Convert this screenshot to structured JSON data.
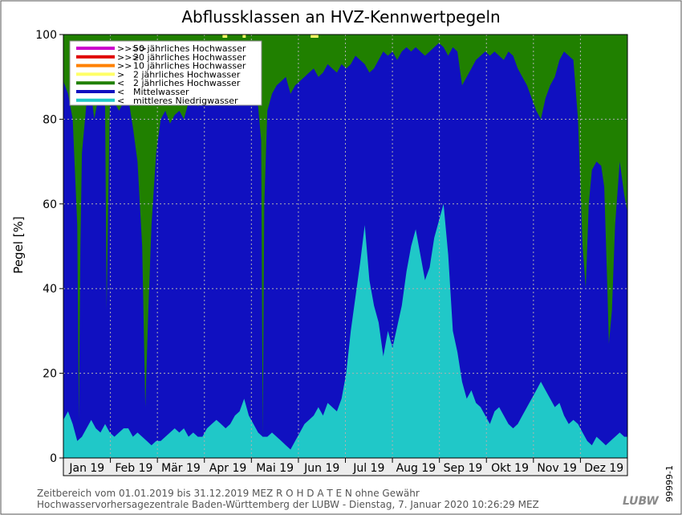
{
  "chart_data": {
    "type": "area",
    "title": "Abflussklassen an HVZ-Kennwertpegeln",
    "ylabel": "Pegel [%]",
    "xlabel": "",
    "ylim": [
      0,
      100
    ],
    "yticks": [
      0,
      20,
      40,
      60,
      80,
      100
    ],
    "grid": true,
    "legend_position": "top-left",
    "months": [
      "Jan 19",
      "Feb 19",
      "Mär 19",
      "Apr 19",
      "Mai 19",
      "Jun 19",
      "Jul 19",
      "Aug 19",
      "Sep 19",
      "Okt 19",
      "Nov 19",
      "Dez 19"
    ],
    "legend": [
      {
        "label": "50 jährliches Hochwasser",
        "marker": ">>>>",
        "color": "#cc00cc"
      },
      {
        "label": "20 jährliches Hochwasser",
        "marker": ">>>",
        "color": "#e00000"
      },
      {
        "label": "10 jährliches Hochwasser",
        "marker": ">>",
        "color": "#ff8000"
      },
      {
        "label": "2 jährliches Hochwasser",
        "marker": ">",
        "color": "#ffff66"
      },
      {
        "label": "2 jährliches Hochwasser",
        "marker": "<",
        "color": "#208000"
      },
      {
        "label": "Mittelwasser",
        "marker": "<",
        "color": "#1010c0"
      },
      {
        "label": "mittleres Niedrigwasser",
        "marker": "<",
        "color": "#20c8c8"
      }
    ],
    "series": [
      {
        "name": "mittleres Niedrigwasser",
        "color": "#20c8c8",
        "points": [
          [
            0,
            9
          ],
          [
            3,
            11
          ],
          [
            6,
            8
          ],
          [
            9,
            4
          ],
          [
            12,
            5
          ],
          [
            15,
            7
          ],
          [
            18,
            9
          ],
          [
            21,
            7
          ],
          [
            24,
            6
          ],
          [
            27,
            8
          ],
          [
            30,
            6
          ],
          [
            33,
            5
          ],
          [
            36,
            6
          ],
          [
            39,
            7
          ],
          [
            42,
            7
          ],
          [
            45,
            5
          ],
          [
            48,
            6
          ],
          [
            51,
            5
          ],
          [
            54,
            4
          ],
          [
            57,
            3
          ],
          [
            60,
            4
          ],
          [
            63,
            4
          ],
          [
            66,
            5
          ],
          [
            69,
            6
          ],
          [
            72,
            7
          ],
          [
            75,
            6
          ],
          [
            78,
            7
          ],
          [
            81,
            5
          ],
          [
            84,
            6
          ],
          [
            87,
            5
          ],
          [
            90,
            5
          ],
          [
            93,
            7
          ],
          [
            96,
            8
          ],
          [
            99,
            9
          ],
          [
            102,
            8
          ],
          [
            105,
            7
          ],
          [
            108,
            8
          ],
          [
            111,
            10
          ],
          [
            114,
            11
          ],
          [
            117,
            14
          ],
          [
            120,
            10
          ],
          [
            123,
            8
          ],
          [
            126,
            6
          ],
          [
            129,
            5
          ],
          [
            132,
            5
          ],
          [
            135,
            6
          ],
          [
            138,
            5
          ],
          [
            141,
            4
          ],
          [
            144,
            3
          ],
          [
            147,
            2
          ],
          [
            150,
            4
          ],
          [
            153,
            6
          ],
          [
            156,
            8
          ],
          [
            159,
            9
          ],
          [
            162,
            10
          ],
          [
            165,
            12
          ],
          [
            168,
            10
          ],
          [
            171,
            13
          ],
          [
            174,
            12
          ],
          [
            177,
            11
          ],
          [
            180,
            14
          ],
          [
            183,
            20
          ],
          [
            186,
            30
          ],
          [
            189,
            38
          ],
          [
            192,
            46
          ],
          [
            195,
            55
          ],
          [
            198,
            42
          ],
          [
            201,
            36
          ],
          [
            204,
            32
          ],
          [
            207,
            24
          ],
          [
            210,
            30
          ],
          [
            213,
            26
          ],
          [
            216,
            31
          ],
          [
            219,
            36
          ],
          [
            222,
            44
          ],
          [
            225,
            50
          ],
          [
            228,
            54
          ],
          [
            231,
            48
          ],
          [
            234,
            42
          ],
          [
            237,
            45
          ],
          [
            240,
            52
          ],
          [
            243,
            56
          ],
          [
            246,
            60
          ],
          [
            249,
            48
          ],
          [
            252,
            30
          ],
          [
            255,
            25
          ],
          [
            258,
            18
          ],
          [
            261,
            14
          ],
          [
            264,
            16
          ],
          [
            267,
            13
          ],
          [
            270,
            12
          ],
          [
            273,
            10
          ],
          [
            276,
            8
          ],
          [
            279,
            11
          ],
          [
            282,
            12
          ],
          [
            285,
            10
          ],
          [
            288,
            8
          ],
          [
            291,
            7
          ],
          [
            294,
            8
          ],
          [
            297,
            10
          ],
          [
            300,
            12
          ],
          [
            303,
            14
          ],
          [
            306,
            16
          ],
          [
            309,
            18
          ],
          [
            312,
            16
          ],
          [
            315,
            14
          ],
          [
            318,
            12
          ],
          [
            321,
            13
          ],
          [
            324,
            10
          ],
          [
            327,
            8
          ],
          [
            330,
            9
          ],
          [
            333,
            8
          ],
          [
            336,
            6
          ],
          [
            339,
            4
          ],
          [
            342,
            3
          ],
          [
            345,
            5
          ],
          [
            348,
            4
          ],
          [
            351,
            3
          ],
          [
            354,
            4
          ],
          [
            357,
            5
          ],
          [
            360,
            6
          ],
          [
            363,
            5
          ],
          [
            365,
            5
          ]
        ]
      },
      {
        "name": "Mittelwasser",
        "color": "#1010c0",
        "points": [
          [
            0,
            89
          ],
          [
            3,
            86
          ],
          [
            6,
            80
          ],
          [
            9,
            55
          ],
          [
            10,
            9
          ],
          [
            11,
            50
          ],
          [
            12,
            72
          ],
          [
            15,
            84
          ],
          [
            18,
            86
          ],
          [
            20,
            80
          ],
          [
            22,
            84
          ],
          [
            24,
            85
          ],
          [
            27,
            83
          ],
          [
            28,
            35
          ],
          [
            29,
            60
          ],
          [
            30,
            83
          ],
          [
            33,
            84
          ],
          [
            36,
            82
          ],
          [
            39,
            84
          ],
          [
            42,
            85
          ],
          [
            45,
            78
          ],
          [
            48,
            70
          ],
          [
            51,
            50
          ],
          [
            53,
            12
          ],
          [
            55,
            35
          ],
          [
            57,
            55
          ],
          [
            60,
            72
          ],
          [
            63,
            80
          ],
          [
            66,
            82
          ],
          [
            69,
            79
          ],
          [
            72,
            81
          ],
          [
            75,
            82
          ],
          [
            78,
            80
          ],
          [
            81,
            84
          ],
          [
            84,
            85
          ],
          [
            87,
            83
          ],
          [
            90,
            85
          ],
          [
            93,
            86
          ],
          [
            96,
            85
          ],
          [
            99,
            86
          ],
          [
            102,
            88
          ],
          [
            105,
            90
          ],
          [
            108,
            92
          ],
          [
            111,
            93
          ],
          [
            114,
            94
          ],
          [
            117,
            95
          ],
          [
            119,
            96
          ],
          [
            120,
            90
          ],
          [
            123,
            87
          ],
          [
            126,
            83
          ],
          [
            128,
            75
          ],
          [
            129,
            5
          ],
          [
            130,
            60
          ],
          [
            132,
            82
          ],
          [
            135,
            86
          ],
          [
            138,
            88
          ],
          [
            141,
            89
          ],
          [
            144,
            90
          ],
          [
            147,
            86
          ],
          [
            150,
            88
          ],
          [
            153,
            89
          ],
          [
            156,
            90
          ],
          [
            159,
            91
          ],
          [
            162,
            92
          ],
          [
            165,
            90
          ],
          [
            168,
            91
          ],
          [
            171,
            93
          ],
          [
            174,
            92
          ],
          [
            177,
            91
          ],
          [
            180,
            93
          ],
          [
            183,
            92
          ],
          [
            186,
            93
          ],
          [
            189,
            95
          ],
          [
            192,
            94
          ],
          [
            195,
            93
          ],
          [
            198,
            91
          ],
          [
            201,
            92
          ],
          [
            204,
            94
          ],
          [
            207,
            96
          ],
          [
            210,
            95
          ],
          [
            213,
            96
          ],
          [
            216,
            94
          ],
          [
            219,
            96
          ],
          [
            222,
            97
          ],
          [
            225,
            96
          ],
          [
            228,
            97
          ],
          [
            231,
            96
          ],
          [
            234,
            95
          ],
          [
            237,
            96
          ],
          [
            240,
            97
          ],
          [
            243,
            98
          ],
          [
            246,
            97
          ],
          [
            249,
            95
          ],
          [
            252,
            97
          ],
          [
            255,
            96
          ],
          [
            258,
            88
          ],
          [
            261,
            90
          ],
          [
            264,
            92
          ],
          [
            267,
            94
          ],
          [
            270,
            95
          ],
          [
            273,
            96
          ],
          [
            276,
            95
          ],
          [
            279,
            96
          ],
          [
            282,
            95
          ],
          [
            285,
            94
          ],
          [
            288,
            96
          ],
          [
            291,
            95
          ],
          [
            294,
            92
          ],
          [
            297,
            90
          ],
          [
            300,
            88
          ],
          [
            303,
            85
          ],
          [
            306,
            82
          ],
          [
            309,
            80
          ],
          [
            312,
            85
          ],
          [
            315,
            88
          ],
          [
            318,
            90
          ],
          [
            321,
            94
          ],
          [
            324,
            96
          ],
          [
            327,
            95
          ],
          [
            330,
            94
          ],
          [
            333,
            80
          ],
          [
            336,
            50
          ],
          [
            338,
            40
          ],
          [
            340,
            60
          ],
          [
            342,
            68
          ],
          [
            345,
            70
          ],
          [
            348,
            69
          ],
          [
            350,
            64
          ],
          [
            352,
            40
          ],
          [
            353,
            27
          ],
          [
            355,
            35
          ],
          [
            357,
            55
          ],
          [
            360,
            70
          ],
          [
            363,
            62
          ],
          [
            365,
            58
          ]
        ]
      },
      {
        "name": "2 jährliches Hochwasser",
        "color": "#208000",
        "points": [
          [
            0,
            100
          ],
          [
            365,
            100
          ]
        ]
      }
    ],
    "flood_events": [
      {
        "start": 103,
        "end": 106,
        "value": 100,
        "color": "#ffff66"
      },
      {
        "start": 116,
        "end": 118,
        "value": 100,
        "color": "#ffff66"
      },
      {
        "start": 160,
        "end": 165,
        "value": 100,
        "color": "#ffff66"
      }
    ]
  },
  "footer": {
    "line1": "Zeitbereich vom 01.01.2019 bis 31.12.2019    MEZ   R O H D A T E N ohne Gewähr",
    "line2": "Hochwasservorhersagezentrale Baden-Württemberg der LUBW - Dienstag, 7. Januar 2020 10:26:29 MEZ",
    "logo": "LUBW",
    "side_id": "99999-1"
  }
}
